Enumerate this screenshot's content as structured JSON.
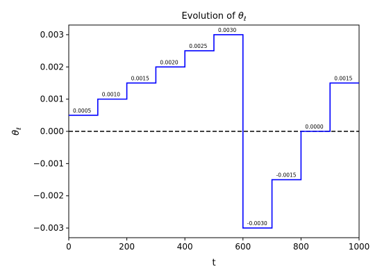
{
  "chart_data": {
    "type": "line",
    "title_prefix": "Evolution of ",
    "title_symbol": "θ",
    "title_subscript": "ℓ",
    "xlabel": "t",
    "ylabel_symbol": "θ",
    "ylabel_subscript": "ℓ",
    "xlim": [
      0,
      1000
    ],
    "ylim": [
      -0.0033,
      0.0033
    ],
    "x_ticks": [
      0,
      200,
      400,
      600,
      800,
      1000
    ],
    "x_tick_labels": [
      "0",
      "200",
      "400",
      "600",
      "800",
      "1000"
    ],
    "y_ticks": [
      -0.003,
      -0.002,
      -0.001,
      0.0,
      0.001,
      0.002,
      0.003
    ],
    "y_tick_labels": [
      "−0.003",
      "−0.002",
      "−0.001",
      "0.000",
      "0.001",
      "0.002",
      "0.003"
    ],
    "series": [
      {
        "color": "#0000ff",
        "steps": [
          {
            "x0": 0,
            "x1": 100,
            "value": 0.0005,
            "label": "0.0005"
          },
          {
            "x0": 100,
            "x1": 200,
            "value": 0.001,
            "label": "0.0010"
          },
          {
            "x0": 200,
            "x1": 300,
            "value": 0.0015,
            "label": "0.0015"
          },
          {
            "x0": 300,
            "x1": 400,
            "value": 0.002,
            "label": "0.0020"
          },
          {
            "x0": 400,
            "x1": 500,
            "value": 0.0025,
            "label": "0.0025"
          },
          {
            "x0": 500,
            "x1": 600,
            "value": 0.003,
            "label": "0.0030"
          },
          {
            "x0": 600,
            "x1": 700,
            "value": -0.003,
            "label": "-0.0030"
          },
          {
            "x0": 700,
            "x1": 800,
            "value": -0.0015,
            "label": "-0.0015"
          },
          {
            "x0": 800,
            "x1": 900,
            "value": 0.0,
            "label": "0.0000"
          },
          {
            "x0": 900,
            "x1": 1000,
            "value": 0.0015,
            "label": "0.0015"
          }
        ]
      }
    ],
    "reference_line": {
      "y": 0,
      "style": "dashed",
      "color": "#000000"
    },
    "grid": false,
    "legend": "none"
  }
}
